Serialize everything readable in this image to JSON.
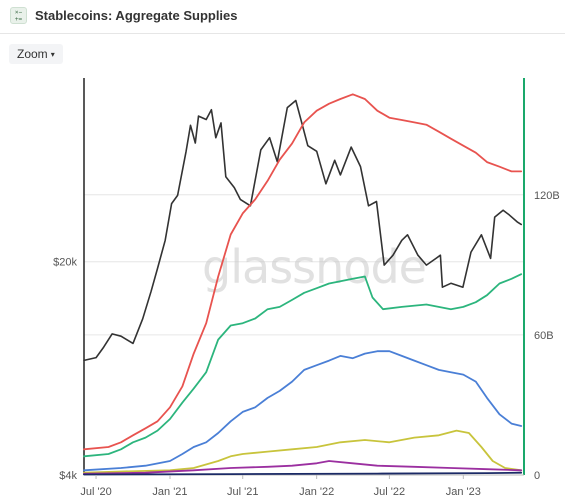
{
  "header": {
    "title": "Stablecoins: Aggregate Supplies",
    "icon": "stablecoin-chart-icon"
  },
  "toolbar": {
    "zoom_label": "Zoom",
    "zoom_caret": "▾"
  },
  "watermark": "glassnode",
  "chart_data": {
    "type": "line",
    "title": "Stablecoins: Aggregate Supplies",
    "x_ticks": [
      "Jul '20",
      "Jan '21",
      "Jul '21",
      "Jan '22",
      "Jul '22",
      "Jan '23"
    ],
    "x_range": [
      "2020-06-01",
      "2023-06-01"
    ],
    "y_left": {
      "scale": "log",
      "ticks": [
        "$4k",
        "$20k"
      ],
      "range": [
        4000,
        80000
      ]
    },
    "y_right": {
      "scale": "linear",
      "ticks": [
        "0",
        "60B",
        "120B"
      ],
      "range": [
        0,
        170
      ]
    },
    "grid": true,
    "axis_color": "#1aa86b",
    "series": [
      {
        "key": "price",
        "axis": "left",
        "color": "#333333",
        "points": [
          [
            "2020-06-01",
            9500
          ],
          [
            "2020-07-01",
            9700
          ],
          [
            "2020-07-20",
            10500
          ],
          [
            "2020-08-10",
            11600
          ],
          [
            "2020-09-01",
            11400
          ],
          [
            "2020-10-01",
            10800
          ],
          [
            "2020-10-25",
            13000
          ],
          [
            "2020-11-15",
            16000
          ],
          [
            "2020-12-01",
            19000
          ],
          [
            "2020-12-20",
            23500
          ],
          [
            "2021-01-05",
            31000
          ],
          [
            "2021-01-20",
            33000
          ],
          [
            "2021-02-10",
            46000
          ],
          [
            "2021-02-21",
            56000
          ],
          [
            "2021-03-05",
            49000
          ],
          [
            "2021-03-13",
            60000
          ],
          [
            "2021-04-01",
            58500
          ],
          [
            "2021-04-14",
            63000
          ],
          [
            "2021-04-25",
            51000
          ],
          [
            "2021-05-08",
            57000
          ],
          [
            "2021-05-20",
            38000
          ],
          [
            "2021-06-10",
            35000
          ],
          [
            "2021-06-25",
            32000
          ],
          [
            "2021-07-20",
            30500
          ],
          [
            "2021-08-15",
            46500
          ],
          [
            "2021-09-06",
            51000
          ],
          [
            "2021-09-25",
            42500
          ],
          [
            "2021-10-20",
            64000
          ],
          [
            "2021-11-10",
            67500
          ],
          [
            "2021-11-25",
            57000
          ],
          [
            "2021-12-10",
            48000
          ],
          [
            "2022-01-01",
            46000
          ],
          [
            "2022-01-24",
            36000
          ],
          [
            "2022-02-15",
            43000
          ],
          [
            "2022-03-01",
            38500
          ],
          [
            "2022-03-28",
            47500
          ],
          [
            "2022-04-20",
            41000
          ],
          [
            "2022-05-10",
            30500
          ],
          [
            "2022-05-30",
            31500
          ],
          [
            "2022-06-18",
            19500
          ],
          [
            "2022-07-10",
            21000
          ],
          [
            "2022-08-01",
            23500
          ],
          [
            "2022-08-15",
            24500
          ],
          [
            "2022-09-10",
            21000
          ],
          [
            "2022-10-01",
            19500
          ],
          [
            "2022-10-25",
            20500
          ],
          [
            "2022-11-05",
            21000
          ],
          [
            "2022-11-10",
            16500
          ],
          [
            "2022-12-01",
            17000
          ],
          [
            "2022-12-31",
            16500
          ],
          [
            "2023-01-20",
            21500
          ],
          [
            "2023-02-15",
            24500
          ],
          [
            "2023-03-10",
            20500
          ],
          [
            "2023-03-20",
            28000
          ],
          [
            "2023-04-10",
            29500
          ],
          [
            "2023-04-25",
            28500
          ],
          [
            "2023-05-15",
            27000
          ],
          [
            "2023-05-25",
            26500
          ]
        ]
      },
      {
        "key": "red",
        "axis": "right",
        "color": "#e8534f",
        "points": [
          [
            "2020-06-01",
            11
          ],
          [
            "2020-08-01",
            12
          ],
          [
            "2020-09-01",
            14
          ],
          [
            "2020-10-01",
            17
          ],
          [
            "2020-11-01",
            20
          ],
          [
            "2020-12-01",
            23
          ],
          [
            "2021-01-01",
            29
          ],
          [
            "2021-02-01",
            38
          ],
          [
            "2021-03-01",
            52
          ],
          [
            "2021-04-01",
            65
          ],
          [
            "2021-05-01",
            85
          ],
          [
            "2021-06-01",
            103
          ],
          [
            "2021-07-01",
            112
          ],
          [
            "2021-08-01",
            118
          ],
          [
            "2021-09-01",
            126
          ],
          [
            "2021-10-01",
            135
          ],
          [
            "2021-11-01",
            142
          ],
          [
            "2021-12-01",
            151
          ],
          [
            "2022-01-01",
            156
          ],
          [
            "2022-02-01",
            159
          ],
          [
            "2022-03-01",
            161
          ],
          [
            "2022-04-01",
            163
          ],
          [
            "2022-05-01",
            161
          ],
          [
            "2022-06-01",
            156
          ],
          [
            "2022-07-01",
            153
          ],
          [
            "2022-08-01",
            152
          ],
          [
            "2022-09-01",
            151
          ],
          [
            "2022-10-01",
            150
          ],
          [
            "2022-11-01",
            147
          ],
          [
            "2022-12-01",
            144
          ],
          [
            "2023-01-01",
            141
          ],
          [
            "2023-02-01",
            138
          ],
          [
            "2023-03-01",
            134
          ],
          [
            "2023-04-01",
            132
          ],
          [
            "2023-05-01",
            130
          ],
          [
            "2023-05-25",
            130
          ]
        ]
      },
      {
        "key": "green",
        "axis": "right",
        "color": "#2cb57d",
        "points": [
          [
            "2020-06-01",
            8
          ],
          [
            "2020-08-01",
            9
          ],
          [
            "2020-09-01",
            11
          ],
          [
            "2020-10-01",
            14
          ],
          [
            "2020-11-01",
            16
          ],
          [
            "2020-12-01",
            19
          ],
          [
            "2021-01-01",
            24
          ],
          [
            "2021-02-01",
            31
          ],
          [
            "2021-03-01",
            37
          ],
          [
            "2021-04-01",
            44
          ],
          [
            "2021-05-01",
            58
          ],
          [
            "2021-06-01",
            64
          ],
          [
            "2021-07-01",
            65
          ],
          [
            "2021-08-01",
            67
          ],
          [
            "2021-09-01",
            71
          ],
          [
            "2021-10-01",
            72
          ],
          [
            "2021-11-01",
            75
          ],
          [
            "2021-12-01",
            78
          ],
          [
            "2022-01-01",
            80
          ],
          [
            "2022-02-01",
            82
          ],
          [
            "2022-03-01",
            83
          ],
          [
            "2022-04-01",
            84
          ],
          [
            "2022-05-01",
            85
          ],
          [
            "2022-05-20",
            76
          ],
          [
            "2022-06-15",
            71
          ],
          [
            "2022-08-01",
            72
          ],
          [
            "2022-10-01",
            73
          ],
          [
            "2022-12-01",
            71
          ],
          [
            "2023-01-01",
            72
          ],
          [
            "2023-02-01",
            74
          ],
          [
            "2023-03-01",
            77
          ],
          [
            "2023-04-01",
            82
          ],
          [
            "2023-05-01",
            84
          ],
          [
            "2023-05-25",
            86
          ]
        ]
      },
      {
        "key": "blue",
        "axis": "right",
        "color": "#4a7fd6",
        "points": [
          [
            "2020-06-01",
            2
          ],
          [
            "2020-09-01",
            3
          ],
          [
            "2020-11-01",
            4
          ],
          [
            "2021-01-01",
            6
          ],
          [
            "2021-02-01",
            9
          ],
          [
            "2021-03-01",
            12
          ],
          [
            "2021-04-01",
            14
          ],
          [
            "2021-05-01",
            18
          ],
          [
            "2021-06-01",
            23
          ],
          [
            "2021-07-01",
            27
          ],
          [
            "2021-08-01",
            29
          ],
          [
            "2021-09-01",
            33
          ],
          [
            "2021-10-01",
            36
          ],
          [
            "2021-11-01",
            40
          ],
          [
            "2021-12-01",
            45
          ],
          [
            "2022-01-01",
            47
          ],
          [
            "2022-02-01",
            49
          ],
          [
            "2022-03-01",
            51
          ],
          [
            "2022-04-01",
            50
          ],
          [
            "2022-05-01",
            52
          ],
          [
            "2022-06-01",
            53
          ],
          [
            "2022-07-01",
            53
          ],
          [
            "2022-08-01",
            51
          ],
          [
            "2022-09-01",
            49
          ],
          [
            "2022-10-01",
            47
          ],
          [
            "2022-11-01",
            45
          ],
          [
            "2022-12-01",
            44
          ],
          [
            "2023-01-01",
            43
          ],
          [
            "2023-02-01",
            40
          ],
          [
            "2023-03-01",
            33
          ],
          [
            "2023-04-01",
            26
          ],
          [
            "2023-05-01",
            22
          ],
          [
            "2023-05-25",
            21
          ]
        ]
      },
      {
        "key": "yellow",
        "axis": "right",
        "color": "#c8c43c",
        "points": [
          [
            "2020-06-01",
            1
          ],
          [
            "2020-09-01",
            1.5
          ],
          [
            "2021-01-01",
            2
          ],
          [
            "2021-03-01",
            3
          ],
          [
            "2021-05-01",
            6
          ],
          [
            "2021-06-01",
            8
          ],
          [
            "2021-07-01",
            9
          ],
          [
            "2021-09-01",
            10
          ],
          [
            "2021-11-01",
            11
          ],
          [
            "2022-01-01",
            12
          ],
          [
            "2022-03-01",
            14
          ],
          [
            "2022-05-01",
            15
          ],
          [
            "2022-07-01",
            14
          ],
          [
            "2022-09-01",
            16
          ],
          [
            "2022-11-01",
            17
          ],
          [
            "2022-12-15",
            19
          ],
          [
            "2023-01-15",
            18
          ],
          [
            "2023-02-15",
            12
          ],
          [
            "2023-03-15",
            6
          ],
          [
            "2023-04-15",
            3
          ],
          [
            "2023-05-25",
            2
          ]
        ]
      },
      {
        "key": "purple",
        "axis": "right",
        "color": "#9b2fa0",
        "points": [
          [
            "2020-06-01",
            0.5
          ],
          [
            "2020-11-01",
            1
          ],
          [
            "2021-03-01",
            2
          ],
          [
            "2021-06-01",
            3
          ],
          [
            "2021-09-01",
            3.5
          ],
          [
            "2021-11-01",
            4
          ],
          [
            "2022-01-01",
            5
          ],
          [
            "2022-02-01",
            6
          ],
          [
            "2022-04-01",
            5
          ],
          [
            "2022-06-01",
            4
          ],
          [
            "2022-09-01",
            3.5
          ],
          [
            "2022-12-01",
            3
          ],
          [
            "2023-03-01",
            2.5
          ],
          [
            "2023-05-25",
            2
          ]
        ]
      },
      {
        "key": "navy",
        "axis": "right",
        "color": "#1b2a66",
        "points": [
          [
            "2020-06-01",
            0.2
          ],
          [
            "2021-06-01",
            0.4
          ],
          [
            "2022-06-01",
            0.6
          ],
          [
            "2023-03-01",
            0.8
          ],
          [
            "2023-05-25",
            1
          ]
        ]
      }
    ]
  }
}
